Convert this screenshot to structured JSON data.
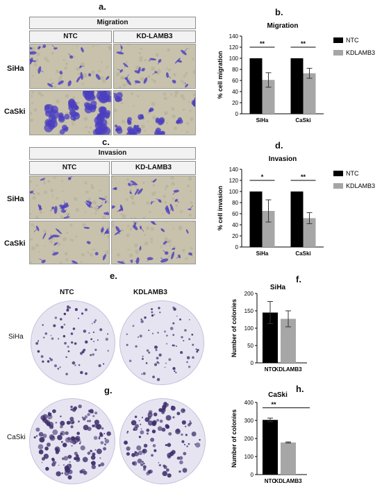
{
  "panels": {
    "a": {
      "letter": "a.",
      "title": "Migration",
      "col1": "NTC",
      "col2": "KD-LAMB3",
      "row1": "SiHa",
      "row2": "CaSki"
    },
    "c": {
      "letter": "c.",
      "title": "Invasion",
      "col1": "NTC",
      "col2": "KD-LAMB3",
      "row1": "SiHa",
      "row2": "CaSki"
    },
    "e": {
      "letter": "e.",
      "col1": "NTC",
      "col2": "KDLAMB3",
      "row1": "SiHa"
    },
    "g": {
      "letter": "g.",
      "row1": "CaSki"
    },
    "b": {
      "letter": "b."
    },
    "d": {
      "letter": "d."
    },
    "f": {
      "letter": "f."
    },
    "h": {
      "letter": "h."
    }
  },
  "colors": {
    "ntc": "#000000",
    "kd": "#a6a6a6",
    "stain": "#4b3fc0",
    "plate_bg": "#e7e4f2",
    "colony": "#3d2e6a"
  },
  "chart_data": [
    {
      "id": "b",
      "type": "bar",
      "title": "Migration",
      "categories": [
        "SiHa",
        "CaSki"
      ],
      "series": [
        {
          "name": "NTC",
          "values": [
            100,
            100
          ],
          "errors": [
            0,
            0
          ]
        },
        {
          "name": "KDLAMB3",
          "values": [
            61,
            73
          ],
          "errors": [
            13,
            9
          ]
        }
      ],
      "xlabel": "",
      "ylabel": "% cell migration",
      "ylim": [
        0,
        140
      ],
      "yticks": [
        0,
        20,
        40,
        60,
        80,
        100,
        120,
        140
      ],
      "significance": [
        "**",
        "**"
      ],
      "legend": "right"
    },
    {
      "id": "d",
      "type": "bar",
      "title": "Invasion",
      "categories": [
        "SiHa",
        "CaSki"
      ],
      "series": [
        {
          "name": "NTC",
          "values": [
            100,
            100
          ],
          "errors": [
            0,
            0
          ]
        },
        {
          "name": "KDLAMB3",
          "values": [
            65,
            52
          ],
          "errors": [
            20,
            10
          ]
        }
      ],
      "xlabel": "",
      "ylabel": "% cell invasion",
      "ylim": [
        0,
        140
      ],
      "yticks": [
        0,
        20,
        40,
        60,
        80,
        100,
        120,
        140
      ],
      "significance": [
        "*",
        "**"
      ],
      "legend": "right"
    },
    {
      "id": "f",
      "type": "bar",
      "title": "SiHa",
      "categories": [
        "NTC",
        "KDLAMB3"
      ],
      "values": [
        145,
        127
      ],
      "errors": [
        32,
        23
      ],
      "xlabel": "",
      "ylabel": "Number of colonies",
      "ylim": [
        0,
        200
      ],
      "yticks": [
        0,
        50,
        100,
        150,
        200
      ],
      "significance": []
    },
    {
      "id": "h",
      "type": "bar",
      "title": "CaSki",
      "categories": [
        "NTC",
        "KDLAMB3"
      ],
      "values": [
        303,
        178
      ],
      "errors": [
        10,
        3
      ],
      "xlabel": "",
      "ylabel": "Number of colonies",
      "ylim": [
        0,
        400
      ],
      "yticks": [
        0,
        100,
        200,
        300,
        400
      ],
      "significance": [
        "**"
      ]
    }
  ]
}
